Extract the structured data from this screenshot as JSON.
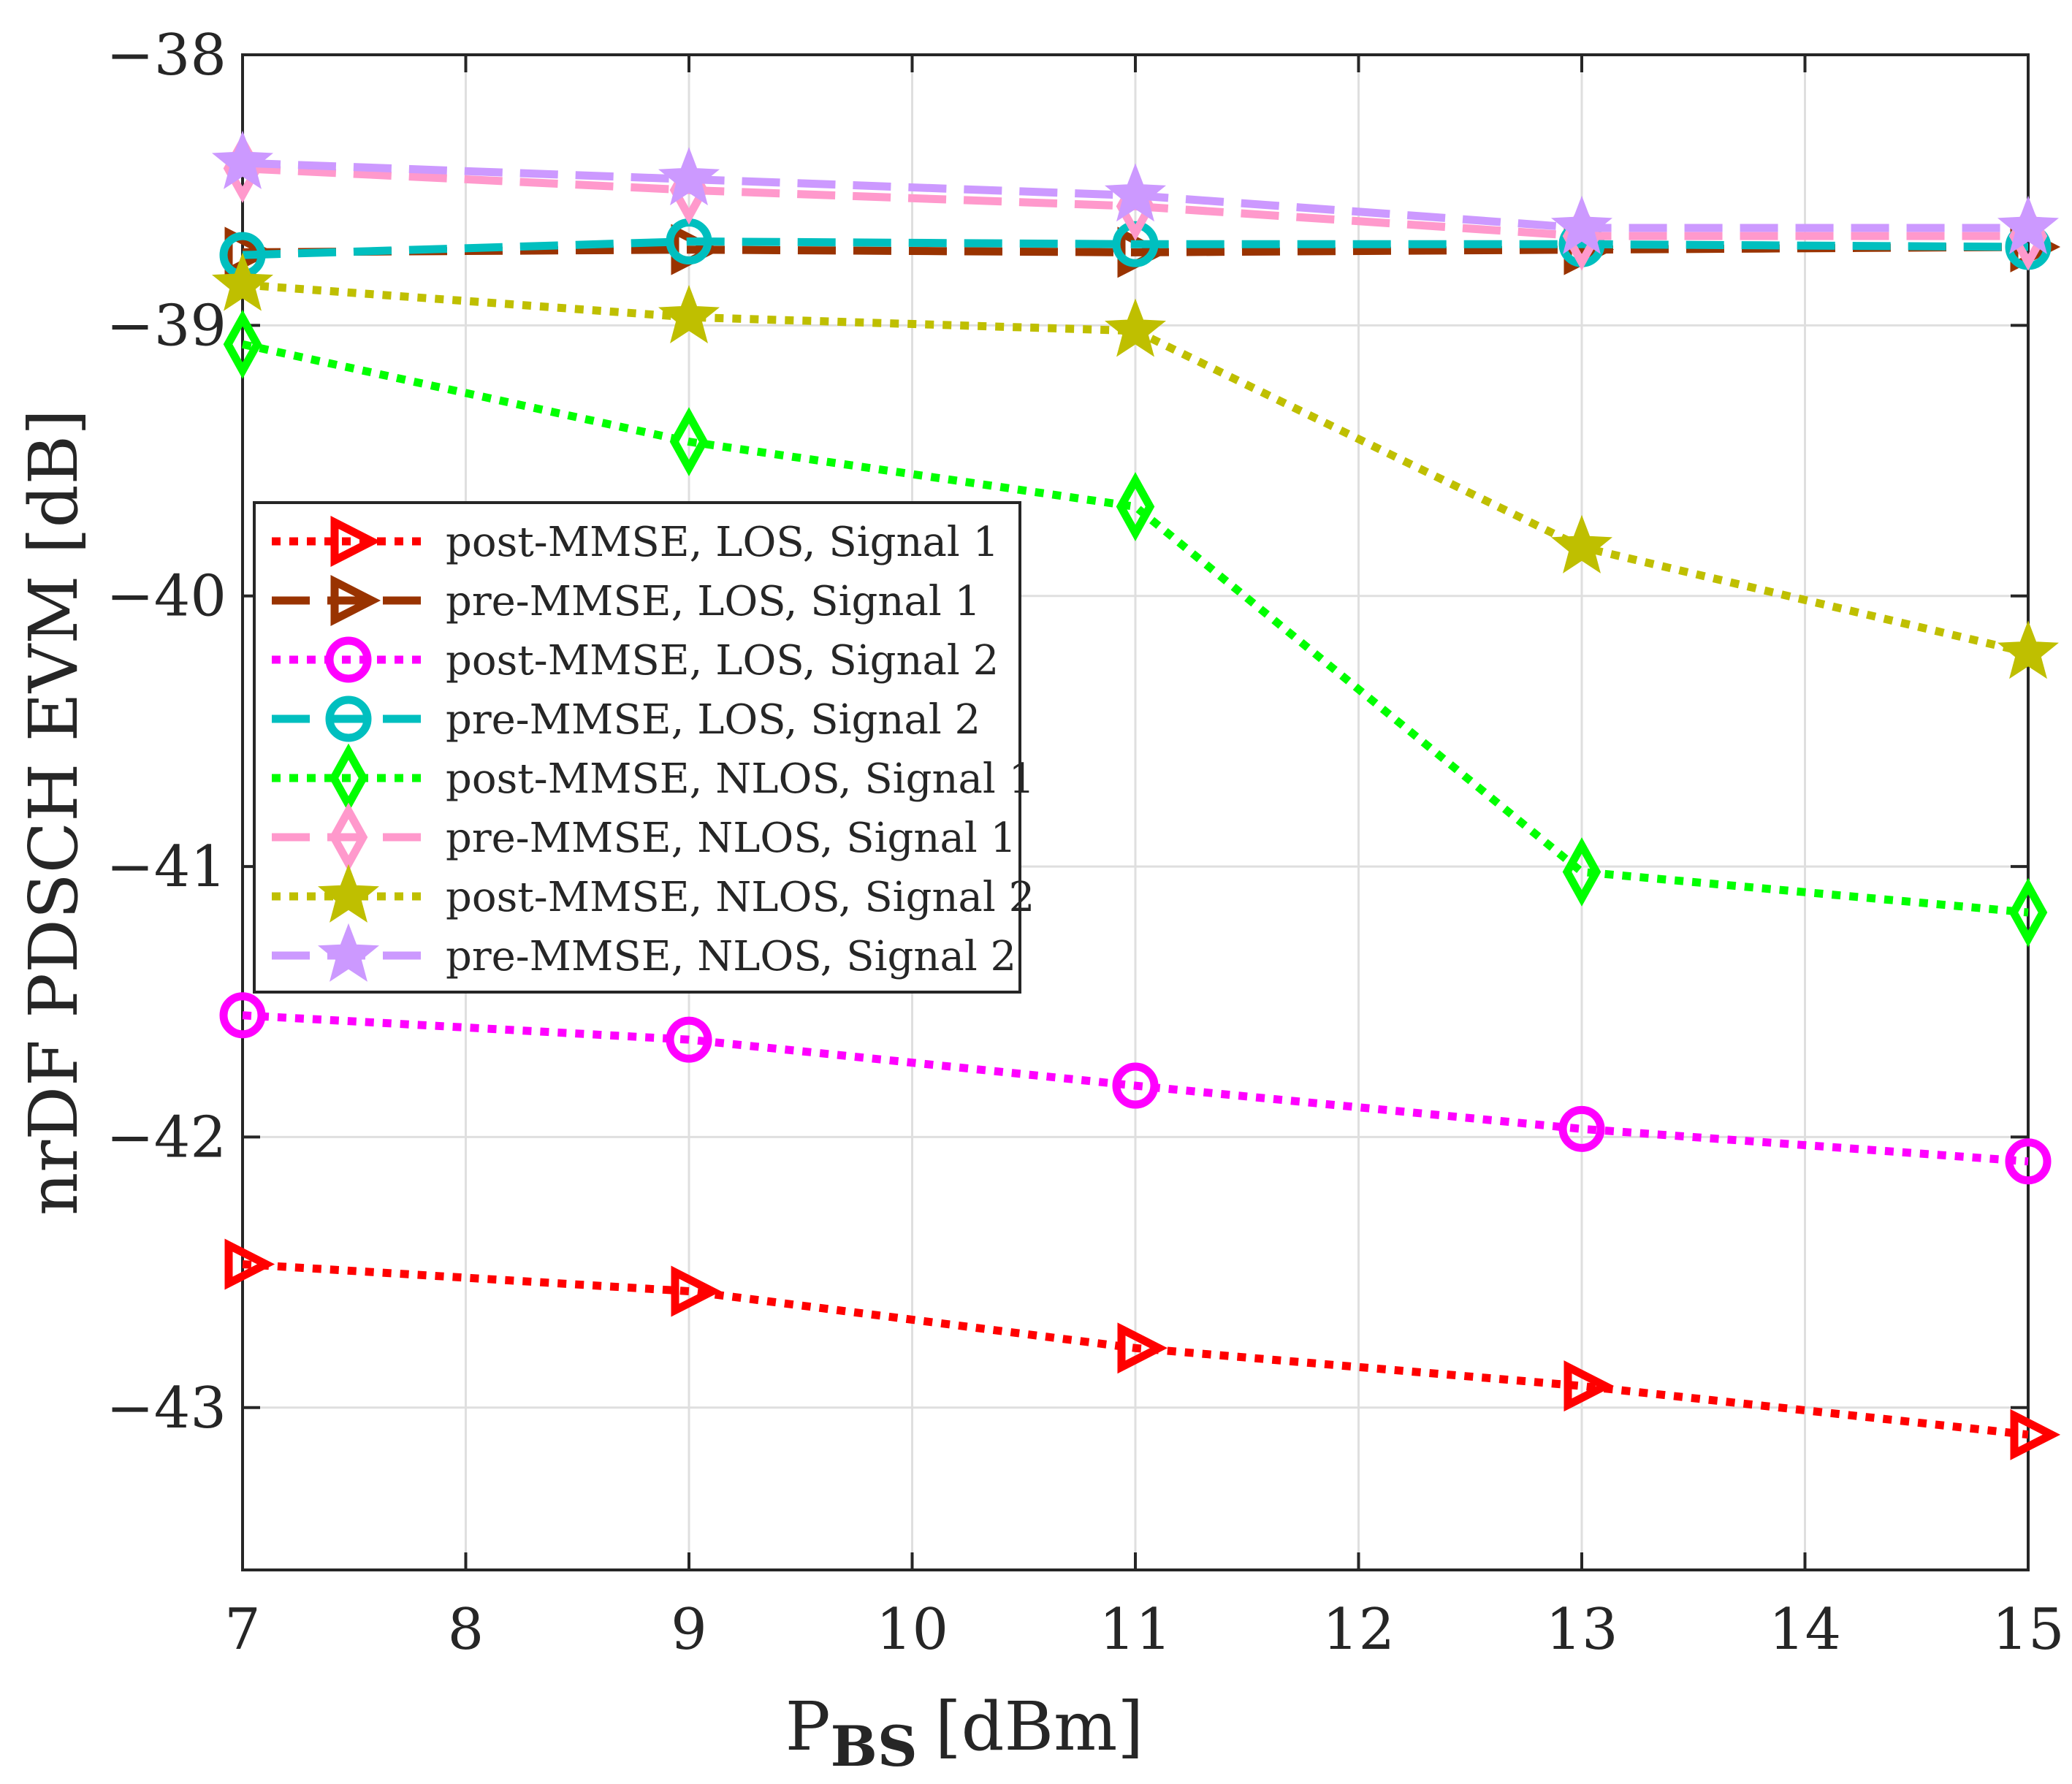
{
  "chart_data": {
    "type": "line",
    "xlabel_main": "P",
    "xlabel_sub": "BS",
    "xlabel_unit": "[dBm]",
    "ylabel": "nrDF PDSCH EVM [dB]",
    "xlim": [
      7,
      15
    ],
    "ylim": [
      -43.6,
      -38
    ],
    "xticks": [
      7,
      8,
      9,
      10,
      11,
      12,
      13,
      14,
      15
    ],
    "yticks": [
      -43,
      -42,
      -41,
      -40,
      -39,
      -38
    ],
    "xtick_labels": [
      "7",
      "8",
      "9",
      "10",
      "11",
      "12",
      "13",
      "14",
      "15"
    ],
    "ytick_labels": [
      "−43",
      "−42",
      "−41",
      "−40",
      "−39",
      "−38"
    ],
    "grid": true,
    "legend_position": "center-left",
    "x": [
      7,
      9,
      11,
      13,
      15
    ],
    "series": [
      {
        "name": "post-MMSE, LOS, Signal 1",
        "values": [
          -42.47,
          -42.57,
          -42.78,
          -42.92,
          -43.1
        ],
        "color": "#ff0000",
        "dash": "dotted",
        "marker": "triangle-right"
      },
      {
        "name": "pre-MMSE, LOS, Signal 1",
        "values": [
          -38.73,
          -38.72,
          -38.73,
          -38.72,
          -38.71
        ],
        "color": "#993300",
        "dash": "dashed",
        "marker": "triangle-right"
      },
      {
        "name": "post-MMSE, LOS, Signal 2",
        "values": [
          -41.55,
          -41.64,
          -41.81,
          -41.97,
          -42.09
        ],
        "color": "#ff00ff",
        "dash": "dotted",
        "marker": "circle"
      },
      {
        "name": "pre-MMSE, LOS, Signal 2",
        "values": [
          -38.74,
          -38.69,
          -38.7,
          -38.7,
          -38.71
        ],
        "color": "#00bfbf",
        "dash": "dashed",
        "marker": "circle"
      },
      {
        "name": "post-MMSE, NLOS, Signal 1",
        "values": [
          -39.07,
          -39.43,
          -39.67,
          -41.02,
          -41.17
        ],
        "color": "#00ff00",
        "dash": "dotted",
        "marker": "diamond"
      },
      {
        "name": "pre-MMSE, NLOS, Signal 1",
        "values": [
          -38.42,
          -38.5,
          -38.56,
          -38.67,
          -38.67
        ],
        "color": "#ff99cc",
        "dash": "dashed",
        "marker": "diamond"
      },
      {
        "name": "post-MMSE, NLOS, Signal 2",
        "values": [
          -38.85,
          -38.97,
          -39.02,
          -39.82,
          -40.21
        ],
        "color": "#bfbf00",
        "dash": "dotted",
        "marker": "star"
      },
      {
        "name": "pre-MMSE, NLOS, Signal 2",
        "values": [
          -38.4,
          -38.46,
          -38.52,
          -38.64,
          -38.64
        ],
        "color": "#cc99ff",
        "dash": "dashed",
        "marker": "star"
      }
    ]
  }
}
